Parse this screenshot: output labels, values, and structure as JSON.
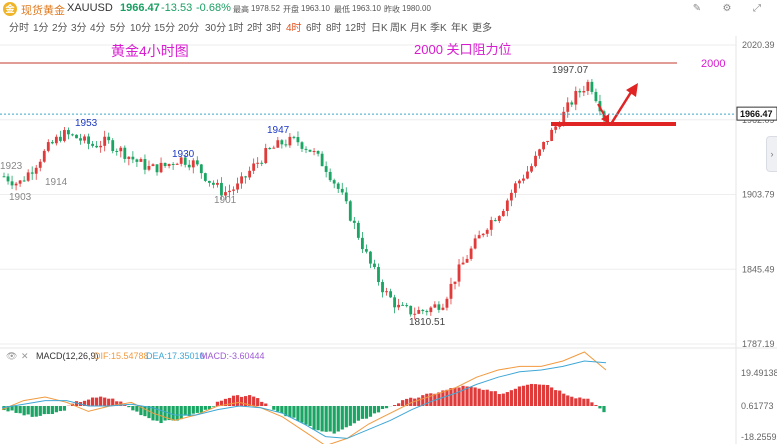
{
  "header": {
    "coin_symbol": "金",
    "name": "现货黄金",
    "symbol": "XAUUSD",
    "price": "1966.47",
    "change": "-13.53",
    "change_pct": "-0.68%",
    "high_label": "最高",
    "high": "1978.52",
    "open_label": "开盘",
    "open": "1963.10",
    "low_label": "最低",
    "low": "1963.10",
    "prev_close_label": "昨收",
    "prev_close": "1980.00",
    "icons": [
      "drawing-tool-icon",
      "settings-icon",
      "fullscreen-icon"
    ]
  },
  "timeframes": [
    "分时",
    "1分",
    "2分",
    "3分",
    "4分",
    "5分",
    "10分",
    "15分",
    "20分",
    "30分",
    "1时",
    "2时",
    "3时",
    "4时",
    "6时",
    "8时",
    "12时",
    "日K",
    "周K",
    "月K",
    "季K",
    "年K",
    "更多"
  ],
  "active_timeframe": "4时",
  "annotations": {
    "chart_title": "黄金4小时图",
    "resistance_label": "2000 关口阻力位",
    "resistance_value": "2000",
    "colors": {
      "annotation_text": "#d81bd0",
      "resistance_line": "#c0392b",
      "support_line": "#e02424",
      "arrow": "#e02424"
    }
  },
  "price_axis": {
    "ticks": [
      "2020.39",
      "1962.09",
      "1903.79",
      "1845.49",
      "1787.19"
    ],
    "current_price": "1966.47"
  },
  "macd": {
    "label": "MACD(12,26,9)",
    "dif": "DIF:15.54788",
    "dea": "DEA:17.35010",
    "macd": "MACD:-3.60444",
    "axis_ticks": [
      "19.49138",
      "0.61773",
      "-18.25592"
    ],
    "colors": {
      "dif": "#f29a3f",
      "dea": "#3fa7d6",
      "macd": "#a05cd6"
    }
  },
  "chart_data": {
    "type": "candlestick",
    "instrument": "XAUUSD",
    "interval": "4H",
    "y_range": [
      1787.19,
      2020.39
    ],
    "price_labels": [
      {
        "label": "1923",
        "value": 1923
      },
      {
        "label": "1903",
        "value": 1903
      },
      {
        "label": "1914",
        "value": 1914
      },
      {
        "label": "1953",
        "value": 1953
      },
      {
        "label": "1930",
        "value": 1930
      },
      {
        "label": "1901",
        "value": 1901
      },
      {
        "label": "1947",
        "value": 1947
      },
      {
        "label": "1810.51",
        "value": 1810.51
      },
      {
        "label": "1997.07",
        "value": 1997.07
      }
    ],
    "close_path": [
      1918,
      1912,
      1925,
      1940,
      1951,
      1948,
      1942,
      1945,
      1938,
      1930,
      1924,
      1926,
      1932,
      1928,
      1915,
      1905,
      1910,
      1925,
      1937,
      1944,
      1946,
      1938,
      1925,
      1905,
      1878,
      1850,
      1828,
      1815,
      1812,
      1814,
      1820,
      1843,
      1862,
      1880,
      1892,
      1912,
      1925,
      1945,
      1962,
      1980,
      1992,
      1966
    ],
    "resistance": 2000,
    "support": 1962
  }
}
